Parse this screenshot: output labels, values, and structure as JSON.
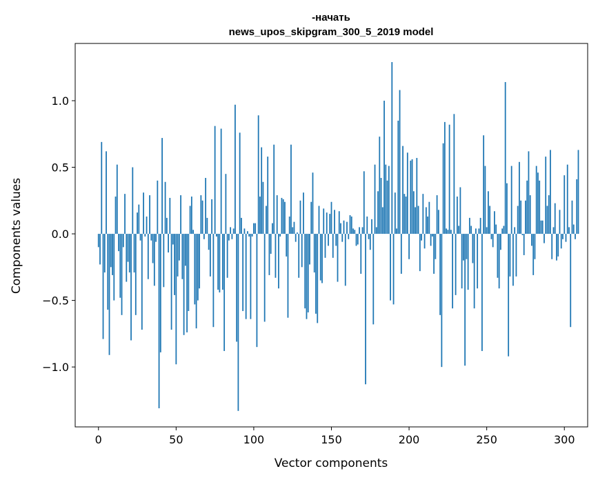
{
  "chart_data": {
    "type": "bar",
    "title_line1": "-начать",
    "title_line2": "news_upos_skipgram_300_5_2019 model",
    "xlabel": "Vector components",
    "ylabel": "Components values",
    "xlim": [
      -15,
      315
    ],
    "ylim": [
      -1.45,
      1.43
    ],
    "x_ticks": [
      0,
      50,
      100,
      150,
      200,
      250,
      300
    ],
    "x_tick_labels": [
      "0",
      "50",
      "100",
      "150",
      "200",
      "250",
      "300"
    ],
    "y_ticks": [
      -1.0,
      -0.5,
      0.0,
      0.5,
      1.0
    ],
    "y_tick_labels": [
      "−1.0",
      "−0.5",
      "0.0",
      "0.5",
      "1.0"
    ],
    "bar_color": "#1f77b4",
    "values": [
      -0.1,
      -0.23,
      0.69,
      -0.79,
      -0.29,
      0.62,
      -0.57,
      -0.91,
      -0.25,
      -0.31,
      -0.5,
      0.28,
      0.52,
      -0.13,
      -0.48,
      -0.61,
      -0.1,
      0.3,
      -0.36,
      -0.21,
      -0.29,
      -0.8,
      0.5,
      -0.29,
      -0.61,
      0.16,
      0.22,
      -0.05,
      -0.72,
      0.31,
      -0.02,
      0.13,
      -0.34,
      0.29,
      -0.05,
      -0.22,
      -0.39,
      -0.06,
      0.4,
      -1.31,
      -0.89,
      0.72,
      -0.4,
      0.39,
      0.12,
      -0.14,
      0.27,
      -0.72,
      -0.08,
      -0.46,
      -0.98,
      -0.32,
      -0.2,
      0.29,
      -0.34,
      -0.76,
      -0.24,
      -0.74,
      -0.58,
      0.21,
      0.28,
      0.03,
      -0.53,
      -0.71,
      -0.5,
      -0.41,
      0.29,
      0.25,
      -0.04,
      0.42,
      0.12,
      -0.12,
      -0.32,
      0.26,
      -0.7,
      0.81,
      -0.02,
      -0.42,
      -0.44,
      0.79,
      -0.42,
      -0.88,
      0.45,
      -0.33,
      -0.05,
      0.05,
      -0.04,
      0.04,
      0.97,
      -0.81,
      -1.33,
      0.76,
      0.12,
      -0.58,
      0.04,
      -0.64,
      0.02,
      -0.02,
      -0.64,
      -0.02,
      0.08,
      0.08,
      -0.85,
      0.89,
      0.28,
      0.65,
      0.39,
      -0.66,
      0.21,
      0.58,
      -0.31,
      -0.15,
      0.08,
      0.67,
      -0.33,
      0.29,
      -0.41,
      -0.02,
      0.27,
      0.26,
      0.24,
      -0.17,
      -0.63,
      0.13,
      0.67,
      0.05,
      0.09,
      -0.06,
      0.01,
      -0.33,
      0.25,
      -0.25,
      0.31,
      -0.56,
      -0.64,
      -0.59,
      -0.23,
      0.24,
      0.46,
      -0.29,
      -0.6,
      -0.67,
      0.21,
      -0.35,
      -0.37,
      0.19,
      -0.18,
      0.16,
      -0.09,
      0.15,
      0.24,
      -0.18,
      0.18,
      -0.09,
      -0.36,
      0.17,
      0.08,
      -0.06,
      0.1,
      -0.39,
      0.09,
      -0.04,
      0.14,
      0.13,
      0.04,
      0.03,
      -0.09,
      -0.08,
      0.05,
      -0.3,
      0.05,
      0.47,
      -1.13,
      0.13,
      -0.04,
      -0.12,
      0.11,
      -0.68,
      0.52,
      0.05,
      0.32,
      0.73,
      0.42,
      0.2,
      1.0,
      0.52,
      0.4,
      0.51,
      -0.5,
      1.29,
      -0.53,
      0.31,
      0.04,
      0.85,
      1.08,
      -0.3,
      0.66,
      0.3,
      0.28,
      0.61,
      -0.19,
      0.55,
      0.56,
      0.32,
      0.2,
      0.57,
      0.21,
      -0.28,
      -0.05,
      0.3,
      -0.11,
      0.2,
      0.13,
      0.24,
      -0.09,
      -0.02,
      -0.3,
      -0.19,
      0.29,
      0.18,
      -0.61,
      -1.0,
      0.68,
      0.84,
      0.04,
      0.03,
      0.82,
      0.03,
      -0.56,
      0.9,
      -0.46,
      0.28,
      0.06,
      0.35,
      -0.41,
      -0.2,
      -0.99,
      -0.19,
      -0.42,
      0.12,
      0.06,
      -0.22,
      -0.56,
      0.04,
      -0.41,
      0.04,
      0.12,
      -0.88,
      0.74,
      0.51,
      0.05,
      0.32,
      0.21,
      -0.04,
      -0.1,
      0.17,
      0.07,
      -0.33,
      -0.41,
      -0.12,
      0.04,
      0.06,
      1.14,
      0.38,
      -0.92,
      -0.32,
      0.51,
      -0.39,
      0.05,
      -0.32,
      0.21,
      0.54,
      0.25,
      -0.01,
      -0.16,
      0.25,
      0.4,
      0.62,
      0.29,
      -0.09,
      -0.31,
      -0.19,
      0.51,
      0.46,
      0.4,
      0.1,
      0.1,
      -0.07,
      0.58,
      0.21,
      0.29,
      0.63,
      -0.19,
      0.05,
      0.23,
      -0.2,
      -0.17,
      0.18,
      -0.11,
      -0.04,
      0.44,
      -0.06,
      0.52,
      0.05,
      -0.7,
      0.25,
      0.07,
      -0.04,
      0.41,
      0.63
    ]
  }
}
